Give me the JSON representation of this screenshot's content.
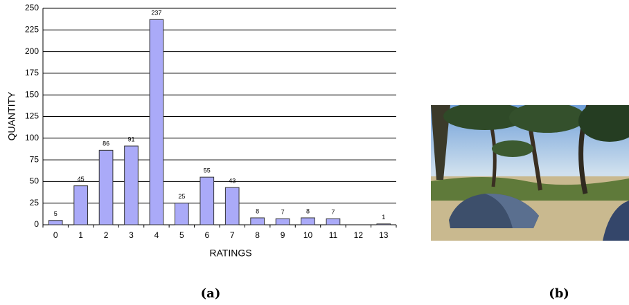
{
  "chart_data": {
    "type": "bar",
    "x_label": "RATINGS",
    "y_label": "QUANTITY",
    "categories": [
      "0",
      "1",
      "2",
      "3",
      "4",
      "5",
      "6",
      "7",
      "8",
      "9",
      "10",
      "11",
      "12",
      "13"
    ],
    "values": [
      5,
      45,
      86,
      91,
      237,
      25,
      55,
      43,
      8,
      7,
      8,
      7,
      null,
      1
    ],
    "color": "#aaaaf8",
    "ylim": [
      0,
      250
    ],
    "yticks": [
      0,
      25,
      50,
      75,
      100,
      125,
      150,
      175,
      200,
      225,
      250
    ],
    "grid": true
  },
  "subfigure_labels": [
    "(a)",
    "(b)"
  ]
}
